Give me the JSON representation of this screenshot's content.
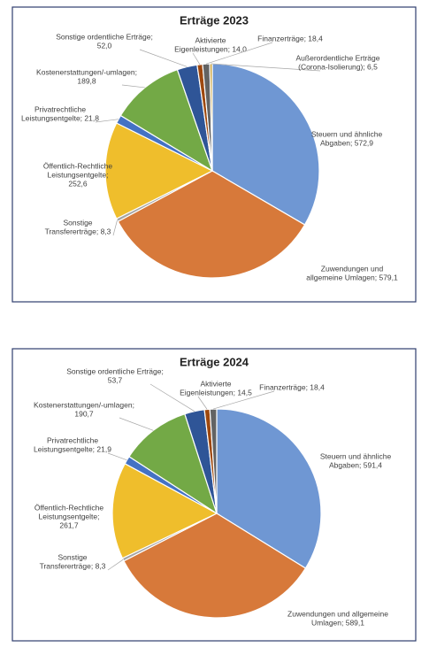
{
  "chart_data": [
    {
      "type": "pie",
      "title": "Erträge 2023",
      "values": [
        572.9,
        579.1,
        8.3,
        252.6,
        21.8,
        189.8,
        52.0,
        14.0,
        18.4,
        6.5
      ],
      "value_labels": [
        [
          "Steuern und  ähnliche",
          "Abgaben; 572,9"
        ],
        [
          "Zuwendungen und",
          "allgemeine Umlagen; 579,1"
        ],
        [
          "Sonstige",
          "Transfererträge; 8,3"
        ],
        [
          "Öffentlich-Rechtliche",
          "Leistungsentgelte;",
          "252,6"
        ],
        [
          "Privatrechtliche",
          "Leistungsentgelte; 21,8"
        ],
        [
          "Kostenerstattungen/-umlagen;",
          "189,8"
        ],
        [
          "Sonstige ordentliche Erträge;",
          "52,0"
        ],
        [
          "Aktivierte",
          "Eigenleistungen; 14,0"
        ],
        [
          "Finanzerträge; 18,4"
        ],
        [
          "Außerordentliche Erträge",
          "(Corona-Isolierung); 6,5"
        ]
      ],
      "colors": [
        "#6f97d3",
        "#d7793a",
        "#a5a5a5",
        "#efbe2c",
        "#4472c4",
        "#73a946",
        "#2f5597",
        "#9e480e",
        "#636363",
        "#c9a13a"
      ]
    },
    {
      "type": "pie",
      "title": "Erträge 2024",
      "values": [
        591.4,
        589.1,
        8.3,
        261.7,
        21.9,
        190.7,
        53.7,
        14.5,
        18.4
      ],
      "value_labels": [
        [
          "Steuern und  ähnliche",
          "Abgaben; 591,4"
        ],
        [
          "Zuwendungen und allgemeine",
          "Umlagen; 589,1"
        ],
        [
          "Sonstige",
          "Transfererträge; 8,3"
        ],
        [
          "Öffentlich-Rechtliche",
          "Leistungsentgelte;",
          "261,7"
        ],
        [
          "Privatrechtliche",
          "Leistungsentgelte; 21,9"
        ],
        [
          "Kostenerstattungen/-umlagen;",
          "190,7"
        ],
        [
          "Sonstige ordentliche Erträge;",
          "53,7"
        ],
        [
          "Aktivierte",
          "Eigenleistungen; 14,5"
        ],
        [
          "Finanzerträge; 18,4"
        ]
      ],
      "colors": [
        "#6f97d3",
        "#d7793a",
        "#a5a5a5",
        "#efbe2c",
        "#4472c4",
        "#73a946",
        "#2f5597",
        "#9e480e",
        "#636363"
      ]
    }
  ]
}
